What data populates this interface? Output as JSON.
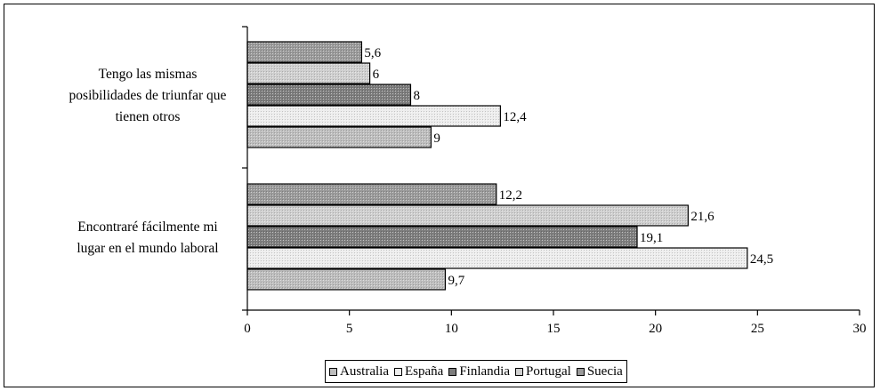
{
  "chart_data": {
    "type": "bar",
    "orientation": "horizontal",
    "categories": [
      [
        "Tengo las mismas",
        "posibilidades de triunfar que",
        "tienen otros"
      ],
      [
        "Encontraré fácilmente mi",
        "lugar en el mundo laboral"
      ]
    ],
    "series": [
      {
        "name": "Australia",
        "values": [
          9,
          9.7
        ],
        "color": "#bdbdbd"
      },
      {
        "name": "España",
        "values": [
          12.4,
          24.5
        ],
        "color": "#ededed"
      },
      {
        "name": "Finlandia",
        "values": [
          8,
          19.1
        ],
        "color": "#7d7d7d"
      },
      {
        "name": "Portugal",
        "values": [
          6,
          21.6
        ],
        "color": "#cfcfcf"
      },
      {
        "name": "Suecia",
        "values": [
          5.6,
          12.2
        ],
        "color": "#9a9a9a"
      }
    ],
    "data_labels": [
      [
        "9",
        "9,7"
      ],
      [
        "12,4",
        "24,5"
      ],
      [
        "8",
        "19,1"
      ],
      [
        "6",
        "21,6"
      ],
      [
        "5,6",
        "12,2"
      ]
    ],
    "xlim": [
      0,
      30
    ],
    "xticks": [
      0,
      5,
      10,
      15,
      20,
      25,
      30
    ],
    "grid": false,
    "legend_position": "bottom"
  }
}
